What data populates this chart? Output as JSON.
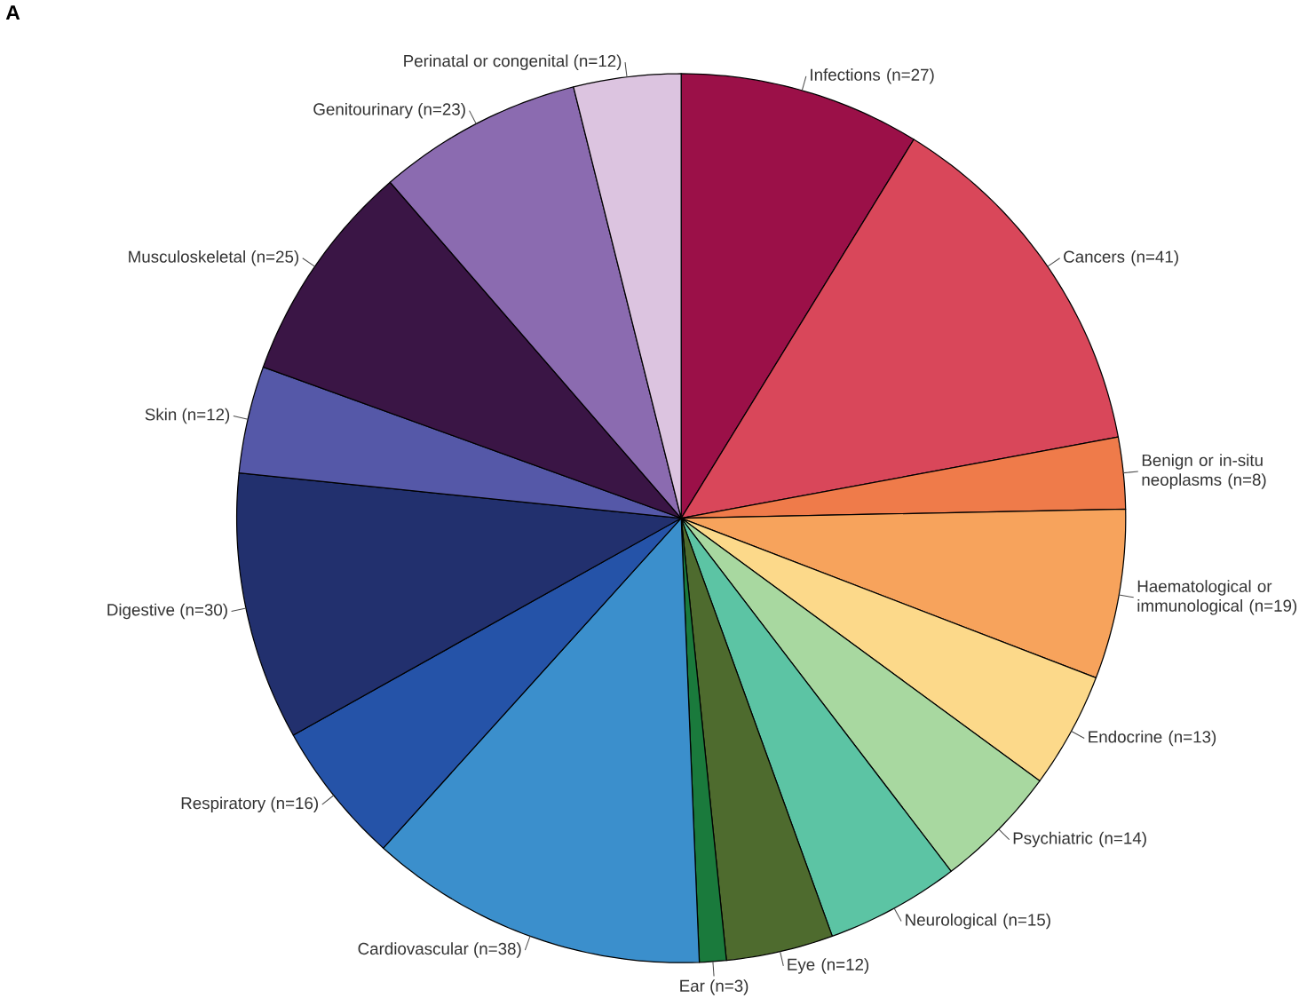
{
  "chart_data": {
    "type": "pie",
    "annotations": [
      "A"
    ],
    "categories": [
      "Infections (n=27)",
      "Cancers (n=41)",
      "Benign or in-situ neoplasms (n=8)",
      "Haematological or immunological (n=19)",
      "Endocrine (n=13)",
      "Psychiatric (n=14)",
      "Neurological (n=15)",
      "Eye (n=12)",
      "Ear (n=3)",
      "Cardiovascular (n=38)",
      "Respiratory (n=16)",
      "Digestive (n=30)",
      "Skin (n=12)",
      "Musculoskeletal (n=25)",
      "Genitourinary (n=23)",
      "Perinatal or congenital (n=12)"
    ],
    "values": [
      27,
      41,
      8,
      19,
      13,
      14,
      15,
      12,
      3,
      38,
      16,
      30,
      12,
      25,
      23,
      12
    ],
    "colors": [
      "#9b1048",
      "#d9475a",
      "#ef7b4a",
      "#f7a35c",
      "#fcd98a",
      "#a8d8a0",
      "#5cc4a4",
      "#4e6b2e",
      "#1a7a3c",
      "#3b8fcc",
      "#2553a8",
      "#22306e",
      "#5558a8",
      "#3a1545",
      "#8b6bb0",
      "#dcc4e0"
    ]
  }
}
